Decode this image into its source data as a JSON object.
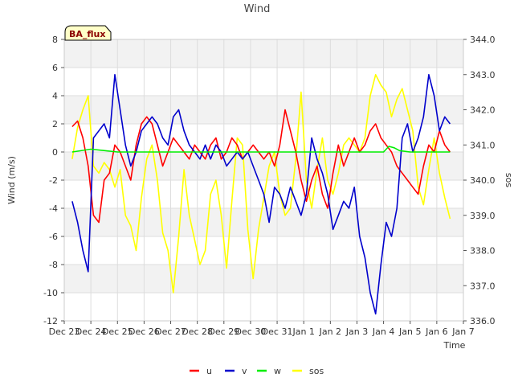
{
  "chart_data": {
    "type": "line",
    "title": "Wind",
    "xlabel": "Time",
    "ylabel": "Wind (m/s)",
    "y2label": "sos",
    "annotation": "BA_flux",
    "x_range_days": [
      0,
      15
    ],
    "x_ticks": [
      "Dec 23",
      "Dec 24",
      "Dec 25",
      "Dec 26",
      "Dec 27",
      "Dec 28",
      "Dec 29",
      "Dec 30",
      "Dec 31",
      "Jan 1",
      "Jan 2",
      "Jan 3",
      "Jan 4",
      "Jan 5",
      "Jan 6",
      "Jan 7"
    ],
    "ylim": [
      -12,
      8
    ],
    "y_ticks": [
      -12,
      -10,
      -8,
      -6,
      -4,
      -2,
      0,
      2,
      4,
      6,
      8
    ],
    "y2lim": [
      336.0,
      344.0
    ],
    "y2_ticks": [
      336.0,
      337.0,
      338.0,
      339.0,
      340.0,
      341.0,
      342.0,
      343.0,
      344.0
    ],
    "legend": [
      "u",
      "v",
      "w",
      "sos"
    ],
    "legend_position": "bottom-center",
    "colors": {
      "u": "#ff0000",
      "v": "#0000cc",
      "w": "#00ee00",
      "sos": "#ffff00"
    },
    "series": [
      {
        "name": "u",
        "axis": "left",
        "x": [
          0.3,
          0.5,
          0.7,
          0.9,
          1.1,
          1.3,
          1.5,
          1.7,
          1.9,
          2.1,
          2.3,
          2.5,
          2.7,
          2.9,
          3.1,
          3.3,
          3.5,
          3.7,
          3.9,
          4.1,
          4.3,
          4.5,
          4.7,
          4.9,
          5.1,
          5.3,
          5.5,
          5.7,
          5.9,
          6.1,
          6.3,
          6.5,
          6.7,
          6.9,
          7.1,
          7.3,
          7.5,
          7.7,
          7.9,
          8.1,
          8.3,
          8.5,
          8.7,
          8.9,
          9.1,
          9.3,
          9.5,
          9.7,
          9.9,
          10.1,
          10.3,
          10.5,
          10.7,
          10.9,
          11.1,
          11.3,
          11.5,
          11.7,
          11.9,
          12.1,
          12.3,
          12.5,
          12.7,
          12.9,
          13.1,
          13.3,
          13.5,
          13.7,
          13.9,
          14.1,
          14.3,
          14.5
        ],
        "values": [
          1.8,
          2.2,
          1.0,
          -1.0,
          -4.5,
          -5.0,
          -2.0,
          -1.5,
          0.5,
          0.0,
          -1.0,
          -2.0,
          0.5,
          2.0,
          2.5,
          2.0,
          0.5,
          -1.0,
          0.0,
          1.0,
          0.5,
          0.0,
          -0.5,
          0.5,
          0.0,
          -0.5,
          0.5,
          1.0,
          -0.5,
          0.0,
          1.0,
          0.5,
          -0.5,
          0.0,
          0.5,
          0.0,
          -0.5,
          0.0,
          -1.0,
          0.5,
          3.0,
          1.5,
          0.0,
          -2.0,
          -3.5,
          -2.0,
          -1.0,
          -3.0,
          -4.0,
          -1.5,
          0.5,
          -1.0,
          0.0,
          1.0,
          0.0,
          0.5,
          1.5,
          2.0,
          1.0,
          0.5,
          0.0,
          -1.0,
          -1.5,
          -2.0,
          -2.5,
          -3.0,
          -1.0,
          0.5,
          0.0,
          1.5,
          0.5,
          0.0
        ]
      },
      {
        "name": "v",
        "axis": "left",
        "x": [
          0.3,
          0.5,
          0.7,
          0.9,
          1.1,
          1.3,
          1.5,
          1.7,
          1.9,
          2.1,
          2.3,
          2.5,
          2.7,
          2.9,
          3.1,
          3.3,
          3.5,
          3.7,
          3.9,
          4.1,
          4.3,
          4.5,
          4.7,
          4.9,
          5.1,
          5.3,
          5.5,
          5.7,
          5.9,
          6.1,
          6.3,
          6.5,
          6.7,
          6.9,
          7.1,
          7.3,
          7.5,
          7.7,
          7.9,
          8.1,
          8.3,
          8.5,
          8.7,
          8.9,
          9.1,
          9.3,
          9.5,
          9.7,
          9.9,
          10.1,
          10.3,
          10.5,
          10.7,
          10.9,
          11.1,
          11.3,
          11.5,
          11.7,
          11.9,
          12.1,
          12.3,
          12.5,
          12.7,
          12.9,
          13.1,
          13.3,
          13.5,
          13.7,
          13.9,
          14.1,
          14.3,
          14.5
        ],
        "values": [
          -3.5,
          -5.0,
          -7.0,
          -8.5,
          1.0,
          1.5,
          2.0,
          1.0,
          5.5,
          3.0,
          0.5,
          -1.0,
          0.0,
          1.5,
          2.0,
          2.5,
          2.0,
          1.0,
          0.5,
          2.5,
          3.0,
          1.5,
          0.5,
          0.0,
          -0.5,
          0.5,
          -0.5,
          0.5,
          0.0,
          -1.0,
          -0.5,
          0.0,
          -0.5,
          0.0,
          -1.0,
          -2.0,
          -3.0,
          -5.0,
          -2.5,
          -3.0,
          -4.0,
          -2.5,
          -3.5,
          -4.5,
          -3.0,
          1.0,
          -0.5,
          -1.5,
          -3.0,
          -5.5,
          -4.5,
          -3.5,
          -4.0,
          -2.5,
          -6.0,
          -7.5,
          -10.0,
          -11.5,
          -8.0,
          -5.0,
          -6.0,
          -4.0,
          1.0,
          2.0,
          0.0,
          1.0,
          2.5,
          5.5,
          4.0,
          1.5,
          2.5,
          2.0
        ]
      },
      {
        "name": "w",
        "axis": "left",
        "x": [
          0.3,
          1.0,
          2.0,
          3.0,
          4.0,
          5.0,
          6.0,
          7.0,
          8.0,
          9.0,
          10.0,
          11.0,
          12.0,
          12.2,
          12.4,
          12.6,
          13.0,
          14.0,
          14.5
        ],
        "values": [
          0.0,
          0.2,
          0.0,
          0.0,
          0.0,
          0.0,
          0.0,
          0.0,
          0.0,
          0.0,
          0.0,
          0.0,
          0.0,
          0.4,
          0.3,
          0.1,
          0.0,
          0.0,
          0.0
        ]
      },
      {
        "name": "sos",
        "axis": "right",
        "x": [
          0.3,
          0.5,
          0.7,
          0.9,
          1.1,
          1.3,
          1.5,
          1.7,
          1.9,
          2.1,
          2.3,
          2.5,
          2.7,
          2.9,
          3.1,
          3.3,
          3.5,
          3.7,
          3.9,
          4.1,
          4.3,
          4.5,
          4.7,
          4.9,
          5.1,
          5.3,
          5.5,
          5.7,
          5.9,
          6.1,
          6.3,
          6.5,
          6.7,
          6.9,
          7.1,
          7.3,
          7.5,
          7.7,
          7.9,
          8.1,
          8.3,
          8.5,
          8.7,
          8.9,
          9.1,
          9.3,
          9.5,
          9.7,
          9.9,
          10.1,
          10.3,
          10.5,
          10.7,
          10.9,
          11.1,
          11.3,
          11.5,
          11.7,
          11.9,
          12.1,
          12.3,
          12.5,
          12.7,
          12.9,
          13.1,
          13.3,
          13.5,
          13.7,
          13.9,
          14.1,
          14.3,
          14.5
        ],
        "values": [
          340.6,
          341.5,
          342.0,
          342.4,
          340.4,
          340.2,
          340.5,
          340.3,
          339.8,
          340.3,
          339.0,
          338.7,
          338.0,
          339.5,
          340.6,
          341.0,
          340.0,
          338.5,
          338.0,
          336.8,
          338.4,
          340.3,
          339.0,
          338.3,
          337.6,
          338.0,
          339.6,
          340.0,
          339.0,
          337.5,
          339.4,
          341.2,
          341.0,
          338.6,
          337.2,
          338.6,
          339.5,
          340.4,
          340.8,
          339.6,
          339.0,
          339.2,
          340.6,
          342.5,
          340.0,
          339.2,
          340.3,
          341.2,
          340.0,
          339.6,
          340.2,
          341.0,
          341.2,
          341.0,
          340.8,
          341.2,
          342.4,
          343.0,
          342.7,
          342.5,
          341.8,
          342.3,
          342.6,
          342.0,
          341.4,
          339.8,
          339.3,
          340.3,
          341.2,
          340.2,
          339.5,
          338.9
        ]
      }
    ]
  }
}
